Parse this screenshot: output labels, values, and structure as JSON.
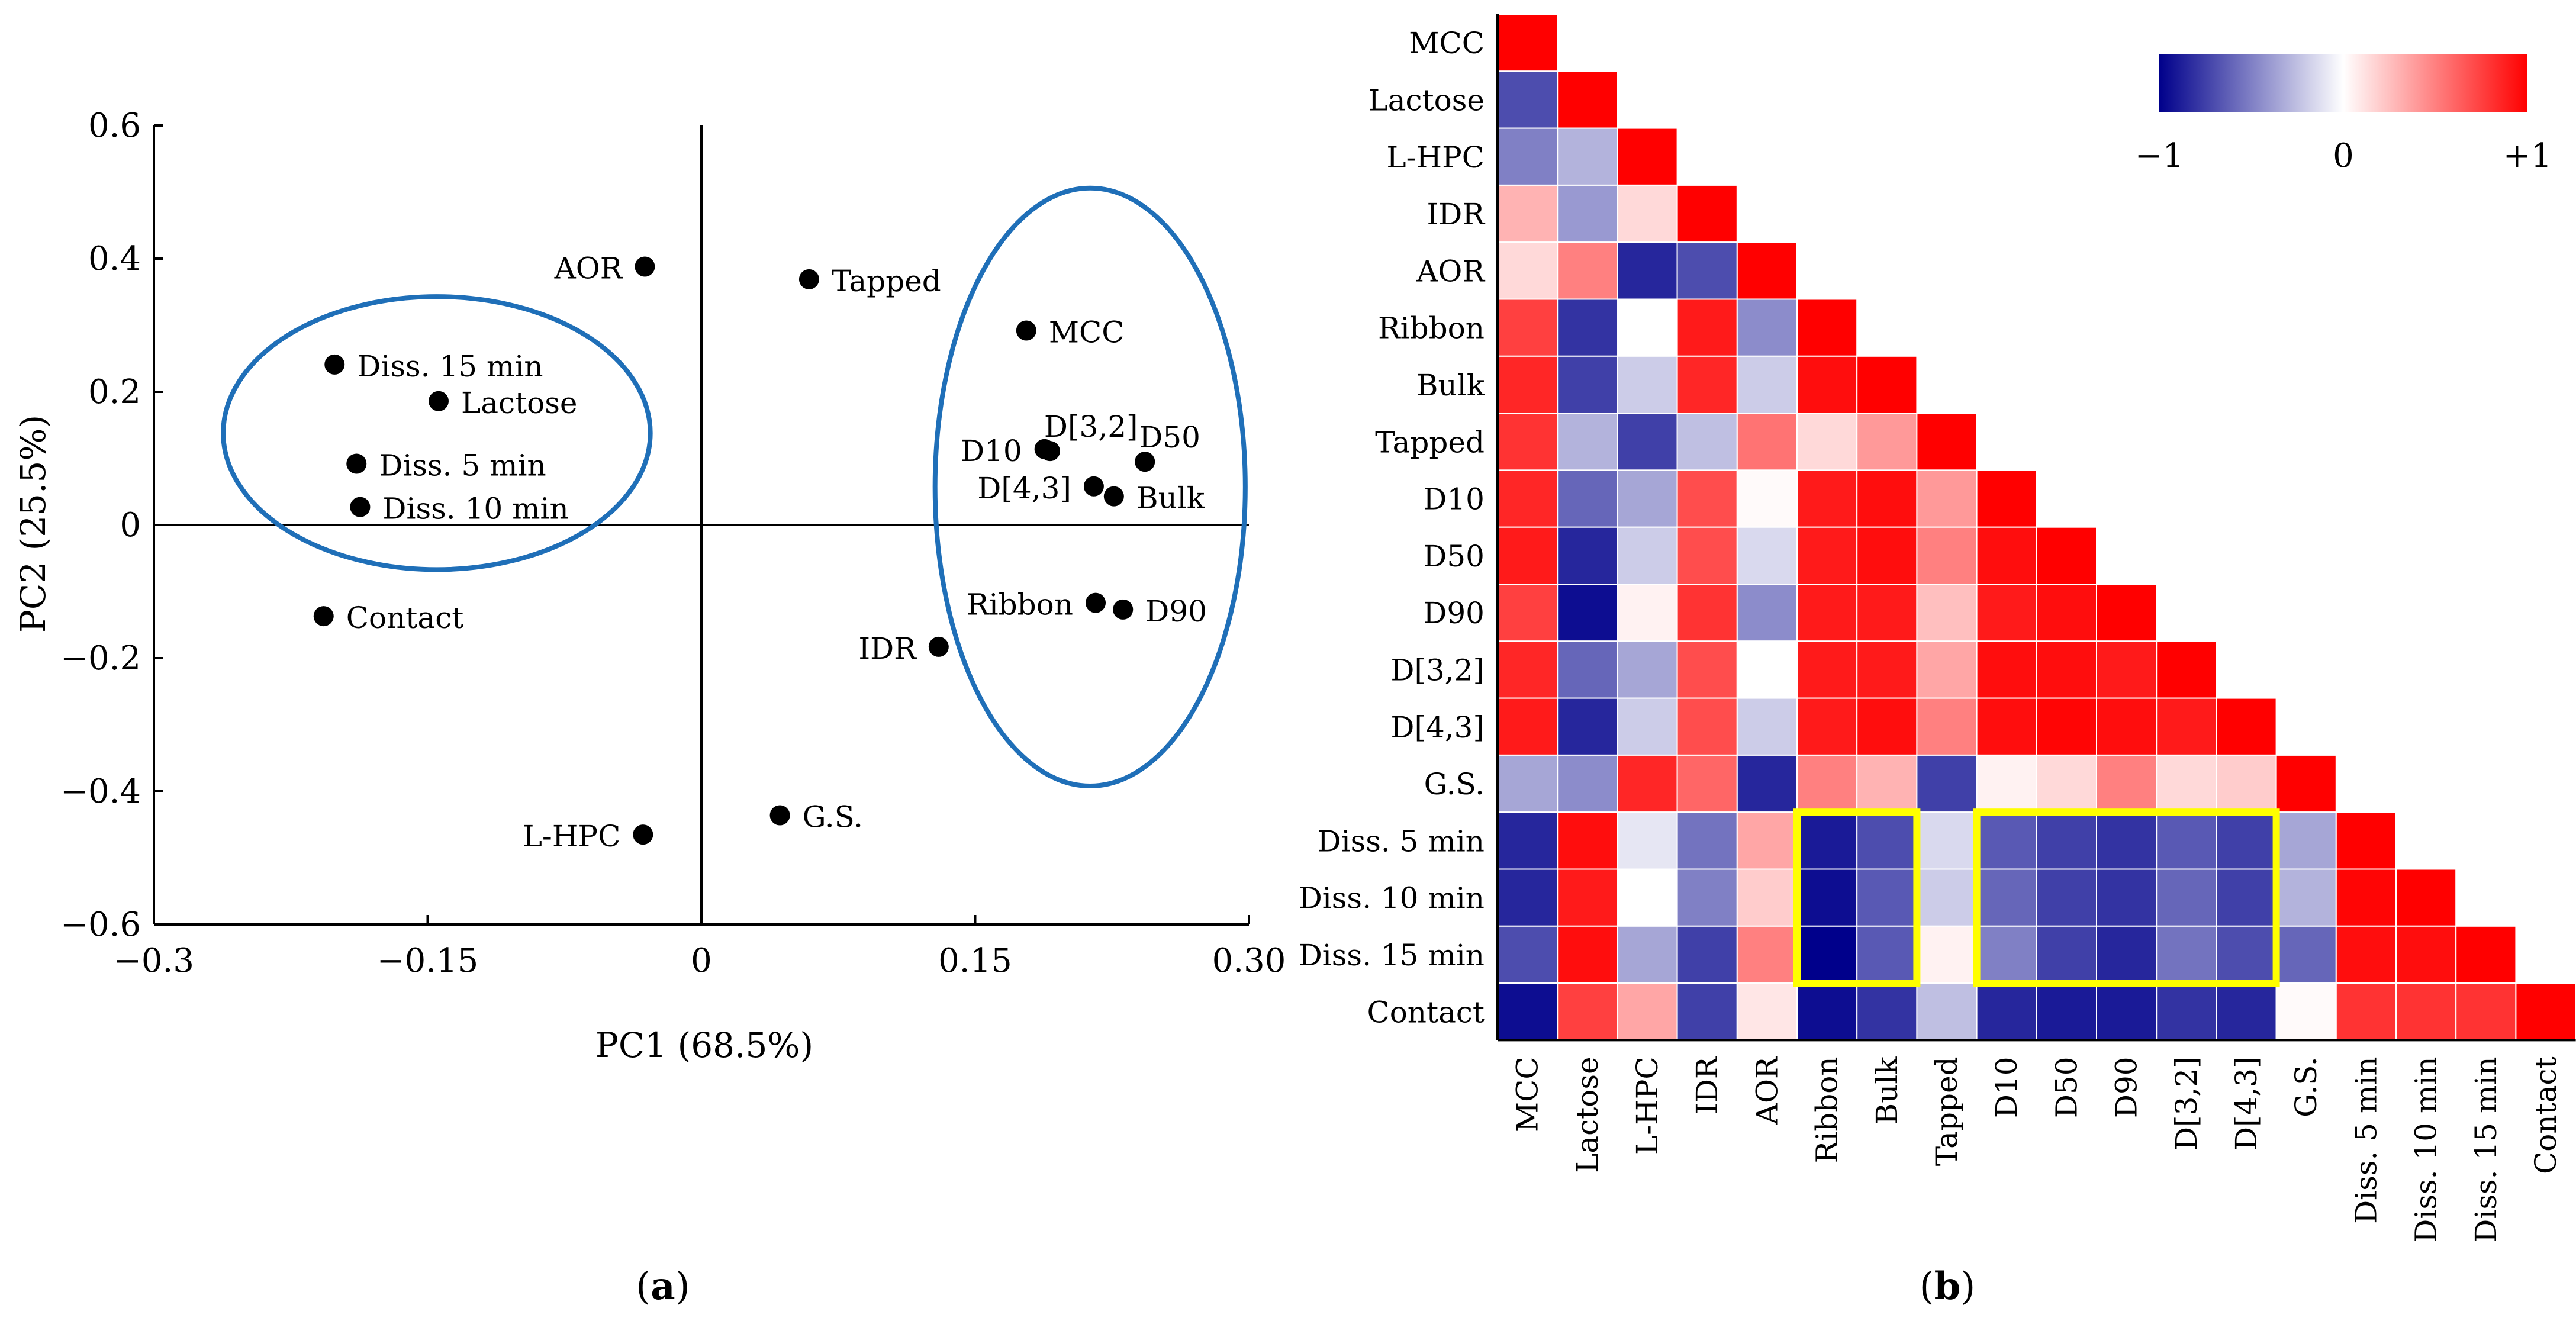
{
  "chart_data": [
    {
      "type": "scatter",
      "panel_label": "a",
      "xlabel": "PC1 (68.5%)",
      "ylabel": "PC2 (25.5%)",
      "xlim": [
        -0.3,
        0.3
      ],
      "ylim": [
        -0.6,
        0.6
      ],
      "xticks": [
        -0.3,
        -0.15,
        0,
        0.15,
        0.3
      ],
      "xtick_labels": [
        "−0.3",
        "−0.15",
        "0",
        "0.15",
        "0.30"
      ],
      "yticks": [
        0.6,
        0.4,
        0.2,
        0,
        -0.2,
        -0.4,
        -0.6
      ],
      "ytick_labels": [
        "0.6",
        "0.4",
        "0.2",
        "0",
        "−0.2",
        "−0.4",
        "−0.6"
      ],
      "points": [
        {
          "label": "AOR",
          "x": -0.031,
          "y": 0.388,
          "side": "left"
        },
        {
          "label": "Tapped",
          "x": 0.059,
          "y": 0.369,
          "side": "right"
        },
        {
          "label": "Diss. 15 min",
          "x": -0.201,
          "y": 0.241,
          "side": "right"
        },
        {
          "label": "Lactose",
          "x": -0.144,
          "y": 0.186,
          "side": "right"
        },
        {
          "label": "Diss. 5 min",
          "x": -0.189,
          "y": 0.092,
          "side": "right"
        },
        {
          "label": "Diss. 10 min",
          "x": -0.187,
          "y": 0.027,
          "side": "right"
        },
        {
          "label": "Contact",
          "x": -0.207,
          "y": -0.137,
          "side": "right"
        },
        {
          "label": "L-HPC",
          "x": -0.032,
          "y": -0.465,
          "side": "left"
        },
        {
          "label": "G.S.",
          "x": 0.043,
          "y": -0.436,
          "side": "right"
        },
        {
          "label": "MCC",
          "x": 0.178,
          "y": 0.292,
          "side": "right"
        },
        {
          "label": "D10",
          "x": 0.188,
          "y": 0.114,
          "side": "left"
        },
        {
          "label": "D[3,2]",
          "x": 0.191,
          "y": 0.111,
          "side": "above-right"
        },
        {
          "label": "D50",
          "x": 0.243,
          "y": 0.095,
          "side": "above-right"
        },
        {
          "label": "D[4,3]",
          "x": 0.215,
          "y": 0.058,
          "side": "left"
        },
        {
          "label": "Bulk",
          "x": 0.226,
          "y": 0.043,
          "side": "right"
        },
        {
          "label": "Ribbon",
          "x": 0.216,
          "y": -0.117,
          "side": "left"
        },
        {
          "label": "D90",
          "x": 0.231,
          "y": -0.127,
          "side": "right"
        },
        {
          "label": "IDR",
          "x": 0.13,
          "y": -0.183,
          "side": "left"
        }
      ],
      "ellipses": [
        {
          "cx": -0.145,
          "cy": 0.138,
          "rx": 0.117,
          "ry": 0.205
        },
        {
          "cx": 0.213,
          "cy": 0.057,
          "rx": 0.085,
          "ry": 0.449
        }
      ],
      "colors": {
        "ellipse": "#1f6fb8",
        "point": "#000000"
      }
    },
    {
      "type": "heatmap",
      "panel_label": "b",
      "variables": [
        "MCC",
        "Lactose",
        "L-HPC",
        "IDR",
        "AOR",
        "Ribbon",
        "Bulk",
        "Tapped",
        "D10",
        "D50",
        "D90",
        "D[3,2]",
        "D[4,3]",
        "G.S.",
        "Diss. 5 min",
        "Diss. 10 min",
        "Diss. 15 min",
        "Contact"
      ],
      "matrix_lower": [
        [
          1
        ],
        [
          -0.7,
          1
        ],
        [
          -0.5,
          -0.3,
          1
        ],
        [
          0.3,
          -0.4,
          0.15,
          1
        ],
        [
          0.15,
          0.5,
          -0.85,
          -0.7,
          1
        ],
        [
          0.75,
          -0.8,
          0,
          0.9,
          -0.45,
          1
        ],
        [
          0.85,
          -0.75,
          -0.2,
          0.85,
          -0.2,
          0.95,
          1
        ],
        [
          0.8,
          -0.3,
          -0.75,
          -0.25,
          0.55,
          0.15,
          0.4,
          1
        ],
        [
          0.85,
          -0.6,
          -0.35,
          0.7,
          0.02,
          0.9,
          0.95,
          0.4,
          1
        ],
        [
          0.9,
          -0.85,
          -0.2,
          0.7,
          -0.15,
          0.9,
          0.95,
          0.5,
          0.95,
          1
        ],
        [
          0.75,
          -0.95,
          0.05,
          0.8,
          -0.45,
          0.9,
          0.9,
          0.25,
          0.9,
          0.95,
          1
        ],
        [
          0.85,
          -0.6,
          -0.35,
          0.7,
          0,
          0.9,
          0.9,
          0.35,
          0.95,
          0.95,
          0.9,
          1
        ],
        [
          0.9,
          -0.85,
          -0.2,
          0.7,
          -0.2,
          0.9,
          0.95,
          0.5,
          0.95,
          0.98,
          0.95,
          0.9,
          1
        ],
        [
          -0.35,
          -0.45,
          0.85,
          0.6,
          -0.85,
          0.5,
          0.3,
          -0.75,
          0.05,
          0.15,
          0.5,
          0.15,
          0.2,
          1
        ],
        [
          -0.85,
          0.95,
          -0.1,
          -0.55,
          0.35,
          -0.9,
          -0.7,
          -0.15,
          -0.65,
          -0.75,
          -0.8,
          -0.65,
          -0.75,
          -0.35,
          1
        ],
        [
          -0.85,
          0.9,
          0,
          -0.5,
          0.2,
          -0.95,
          -0.65,
          -0.2,
          -0.6,
          -0.75,
          -0.8,
          -0.6,
          -0.75,
          -0.3,
          0.98,
          1
        ],
        [
          -0.7,
          0.95,
          -0.35,
          -0.75,
          0.5,
          -1.0,
          -0.65,
          0.05,
          -0.5,
          -0.75,
          -0.85,
          -0.55,
          -0.7,
          -0.6,
          0.95,
          0.95,
          1
        ],
        [
          -0.95,
          0.75,
          0.35,
          -0.75,
          0.1,
          -0.95,
          -0.8,
          -0.25,
          -0.85,
          -0.9,
          -0.9,
          -0.8,
          -0.85,
          0.02,
          0.8,
          0.8,
          0.8,
          1
        ]
      ],
      "color_scale": {
        "min": -1,
        "mid": 0,
        "max": 1,
        "min_color": "#00008b",
        "mid_color": "#ffffff",
        "max_color": "#ff0000",
        "tick_labels": [
          "−1",
          "0",
          "+1"
        ]
      },
      "highlight_boxes": [
        {
          "rows": [
            "Diss. 5 min",
            "Diss. 15 min"
          ],
          "cols": [
            "Ribbon",
            "Bulk"
          ]
        },
        {
          "rows": [
            "Diss. 5 min",
            "Diss. 15 min"
          ],
          "cols": [
            "D10",
            "D[4,3]"
          ]
        }
      ],
      "highlight_color": "#ffff00"
    }
  ]
}
